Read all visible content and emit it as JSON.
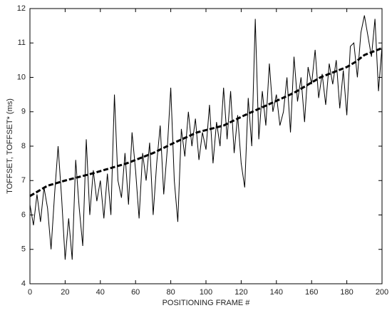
{
  "chart_data": {
    "type": "line",
    "x_label": "POSITIONING FRAME #",
    "y_label": "TOFFSET, TOFFSET* (ms)",
    "x": [
      0,
      2,
      4,
      6,
      8,
      10,
      12,
      14,
      16,
      18,
      20,
      22,
      24,
      26,
      28,
      30,
      32,
      34,
      36,
      38,
      40,
      42,
      44,
      46,
      48,
      50,
      52,
      54,
      56,
      58,
      60,
      62,
      64,
      66,
      68,
      70,
      72,
      74,
      76,
      78,
      80,
      82,
      84,
      86,
      88,
      90,
      92,
      94,
      96,
      98,
      100,
      102,
      104,
      106,
      108,
      110,
      112,
      114,
      116,
      118,
      120,
      122,
      124,
      126,
      128,
      130,
      132,
      134,
      136,
      138,
      140,
      142,
      144,
      146,
      148,
      150,
      152,
      154,
      156,
      158,
      160,
      162,
      164,
      166,
      168,
      170,
      172,
      174,
      176,
      178,
      180,
      182,
      184,
      186,
      188,
      190,
      192,
      194,
      196,
      198,
      200
    ],
    "series": [
      {
        "color": "#000000",
        "dash": false,
        "values": [
          6.3,
          5.7,
          6.6,
          5.8,
          6.8,
          6.2,
          5.0,
          6.6,
          8.0,
          6.5,
          4.7,
          5.9,
          4.7,
          7.6,
          6.2,
          5.1,
          8.2,
          6.0,
          7.3,
          6.4,
          7.0,
          5.9,
          7.2,
          6.0,
          9.5,
          7.0,
          6.5,
          7.8,
          6.3,
          8.4,
          7.3,
          5.9,
          7.8,
          7.0,
          8.1,
          6.0,
          7.5,
          8.6,
          6.6,
          7.9,
          9.7,
          7.0,
          5.8,
          8.5,
          7.7,
          9.0,
          8.0,
          8.8,
          7.6,
          8.4,
          7.9,
          9.2,
          7.5,
          8.7,
          8.0,
          9.7,
          8.2,
          9.6,
          7.8,
          8.9,
          7.5,
          6.8,
          9.4,
          8.0,
          11.7,
          8.2,
          9.6,
          8.6,
          10.4,
          9.0,
          9.5,
          8.6,
          9.0,
          10.0,
          8.4,
          10.6,
          9.3,
          10.0,
          8.7,
          10.3,
          9.8,
          10.8,
          9.4,
          10.1,
          9.2,
          10.4,
          9.8,
          10.5,
          9.1,
          10.2,
          8.9,
          10.9,
          11.0,
          10.0,
          11.3,
          11.8,
          11.2,
          10.6,
          11.7,
          9.6,
          10.9
        ]
      },
      {
        "color": "#000000",
        "dash": true,
        "x": [
          0,
          5,
          10,
          20,
          35,
          45,
          55,
          70,
          82,
          95,
          110,
          122,
          135,
          150,
          165,
          180,
          185,
          190,
          200
        ],
        "values": [
          6.55,
          6.7,
          6.85,
          7.0,
          7.2,
          7.35,
          7.5,
          7.8,
          8.1,
          8.4,
          8.6,
          8.9,
          9.2,
          9.55,
          10.0,
          10.3,
          10.45,
          10.65,
          10.85
        ]
      }
    ],
    "xlim": [
      0,
      200
    ],
    "xticks": [
      0,
      20,
      40,
      60,
      80,
      100,
      120,
      140,
      160,
      180,
      200
    ],
    "ylim": [
      4,
      12
    ],
    "yticks": [
      4,
      5,
      6,
      7,
      8,
      9,
      10,
      11,
      12
    ]
  }
}
